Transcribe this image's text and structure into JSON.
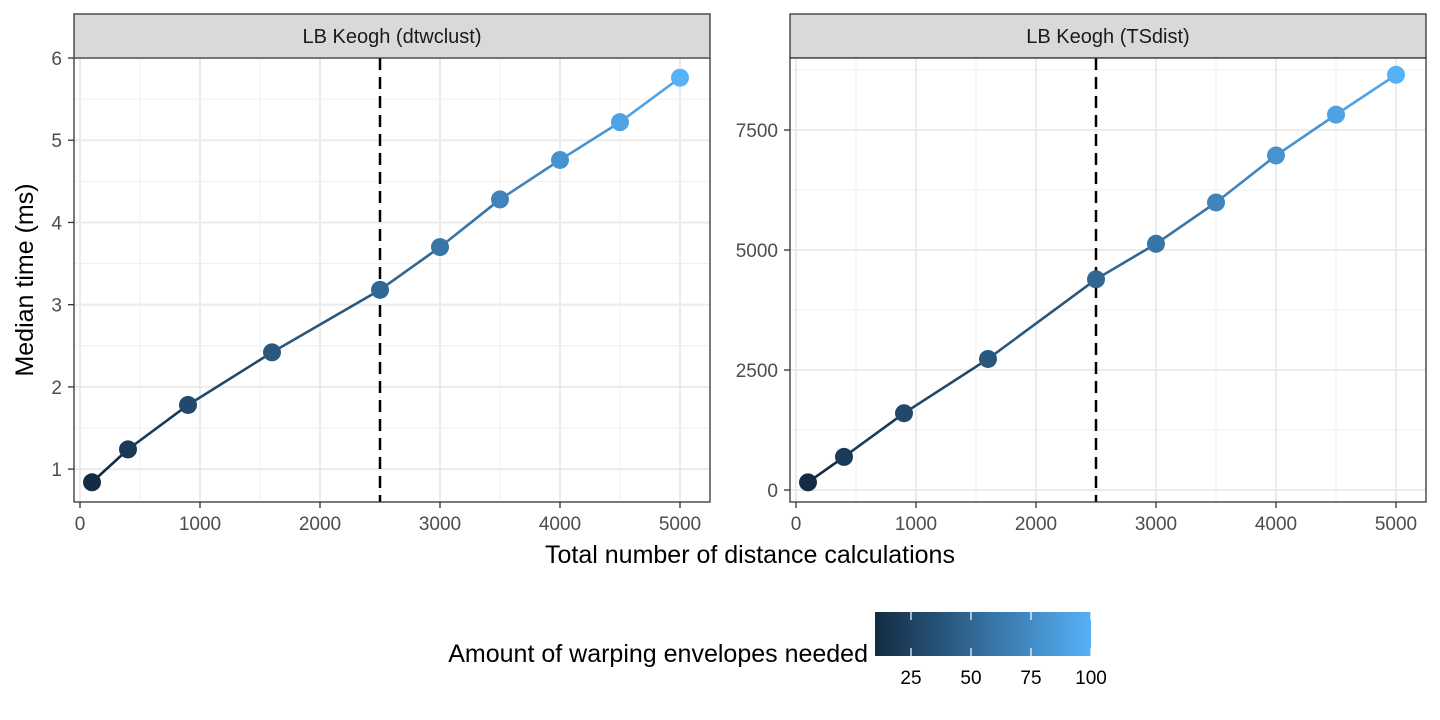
{
  "chart_data": {
    "type": "line",
    "xlabel": "Total number of distance calculations",
    "ylabel": "Median time (ms)",
    "legend": {
      "title": "Amount of warping envelopes needed",
      "position": "bottom",
      "range": [
        10,
        100
      ],
      "ticks": [
        "25",
        "50",
        "75",
        "100"
      ],
      "color_low": "#132B43",
      "color_high": "#56B1F7"
    },
    "panels": [
      {
        "title": "LB Keogh (dtwclust)",
        "xlim": [
          -50,
          5250
        ],
        "ylim": [
          0.6,
          6.0
        ],
        "x_ticks": [
          0,
          1000,
          2000,
          3000,
          4000,
          5000
        ],
        "y_ticks": [
          1,
          2,
          3,
          4,
          5,
          6
        ],
        "vline_x": 2500,
        "x": [
          100,
          400,
          900,
          1600,
          2500,
          3000,
          3500,
          4000,
          4500,
          5000
        ],
        "y": [
          0.84,
          1.24,
          1.78,
          2.42,
          3.18,
          3.7,
          4.28,
          4.76,
          5.22,
          5.76
        ],
        "envelopes": [
          10,
          20,
          30,
          40,
          50,
          60,
          70,
          80,
          90,
          100
        ]
      },
      {
        "title": "LB Keogh (TSdist)",
        "xlim": [
          -50,
          5250
        ],
        "ylim": [
          -250,
          9000
        ],
        "x_ticks": [
          0,
          1000,
          2000,
          3000,
          4000,
          5000
        ],
        "y_ticks": [
          0,
          2500,
          5000,
          7500
        ],
        "vline_x": 2500,
        "x": [
          100,
          400,
          900,
          1600,
          2500,
          3000,
          3500,
          4000,
          4500,
          5000
        ],
        "y": [
          160,
          690,
          1600,
          2730,
          4390,
          5130,
          5990,
          6970,
          7820,
          8650
        ],
        "envelopes": [
          10,
          20,
          30,
          40,
          50,
          60,
          70,
          80,
          90,
          100
        ]
      }
    ]
  }
}
